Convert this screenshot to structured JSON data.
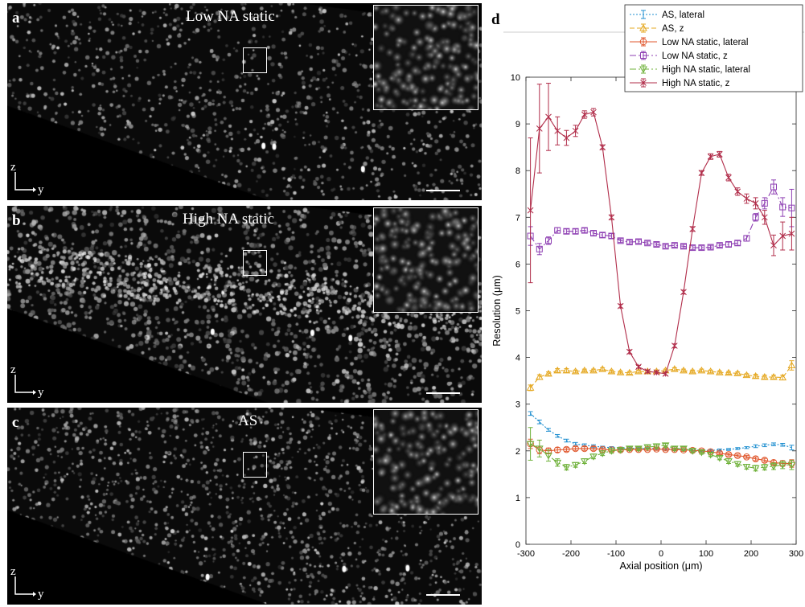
{
  "panels": [
    {
      "letter": "a",
      "title": "Low NA static",
      "axis_z": "z",
      "axis_y": "y",
      "density": 1300,
      "blur": 0.25,
      "band": false
    },
    {
      "letter": "b",
      "title": "High NA static",
      "axis_z": "z",
      "axis_y": "y",
      "density": 1800,
      "blur": 0.55,
      "band": true
    },
    {
      "letter": "c",
      "title": "AS",
      "axis_z": "z",
      "axis_y": "y",
      "density": 1700,
      "blur": 0.2,
      "band": false
    }
  ],
  "chart_data": {
    "type": "line",
    "panel_letter": "d",
    "xlabel": "Axial position (μm)",
    "ylabel": "Resolution (μm)",
    "xlim": [
      -300,
      300
    ],
    "ylim": [
      0,
      10
    ],
    "xticks": [
      -300,
      -200,
      -100,
      0,
      100,
      200,
      300
    ],
    "yticks": [
      0,
      1,
      2,
      3,
      4,
      5,
      6,
      7,
      8,
      9,
      10
    ],
    "legend_position": "top-right",
    "x": [
      -290,
      -270,
      -250,
      -230,
      -210,
      -190,
      -170,
      -150,
      -130,
      -110,
      -90,
      -70,
      -50,
      -30,
      -10,
      10,
      30,
      50,
      70,
      90,
      110,
      130,
      150,
      170,
      190,
      210,
      230,
      250,
      270,
      290
    ],
    "series": [
      {
        "name": "AS, lateral",
        "color": "#1f8fd0",
        "marker": "I",
        "dash": "2,2",
        "values": [
          2.8,
          2.62,
          2.45,
          2.32,
          2.22,
          2.15,
          2.12,
          2.1,
          2.08,
          2.07,
          2.06,
          2.06,
          2.05,
          2.05,
          2.05,
          2.04,
          2.04,
          2.03,
          2.02,
          2.01,
          2.01,
          2.02,
          2.03,
          2.05,
          2.07,
          2.1,
          2.12,
          2.14,
          2.13,
          2.07
        ],
        "err": [
          0.04,
          0.04,
          0.03,
          0.03,
          0.03,
          0.03,
          0.03,
          0.03,
          0.02,
          0.02,
          0.02,
          0.02,
          0.02,
          0.02,
          0.02,
          0.02,
          0.02,
          0.02,
          0.02,
          0.02,
          0.02,
          0.02,
          0.02,
          0.02,
          0.02,
          0.03,
          0.03,
          0.03,
          0.03,
          0.05
        ]
      },
      {
        "name": "AS, z",
        "color": "#e5a821",
        "marker": "triangle-up",
        "dash": "6,3",
        "values": [
          3.35,
          3.58,
          3.65,
          3.72,
          3.72,
          3.7,
          3.72,
          3.72,
          3.75,
          3.7,
          3.68,
          3.67,
          3.7,
          3.7,
          3.7,
          3.72,
          3.75,
          3.72,
          3.7,
          3.72,
          3.7,
          3.68,
          3.67,
          3.66,
          3.62,
          3.6,
          3.58,
          3.58,
          3.57,
          3.83
        ],
        "err": [
          0.06,
          0.05,
          0.04,
          0.04,
          0.04,
          0.03,
          0.03,
          0.03,
          0.03,
          0.03,
          0.03,
          0.03,
          0.03,
          0.03,
          0.03,
          0.03,
          0.03,
          0.03,
          0.03,
          0.03,
          0.03,
          0.03,
          0.03,
          0.03,
          0.03,
          0.04,
          0.04,
          0.04,
          0.05,
          0.1
        ]
      },
      {
        "name": "Low NA static, lateral",
        "color": "#e0572d",
        "marker": "circle",
        "dash": "",
        "values": [
          2.15,
          2.02,
          2.0,
          2.02,
          2.03,
          2.05,
          2.05,
          2.05,
          2.03,
          2.02,
          2.02,
          2.03,
          2.03,
          2.03,
          2.04,
          2.03,
          2.03,
          2.02,
          2.01,
          2.0,
          1.98,
          1.95,
          1.92,
          1.9,
          1.87,
          1.83,
          1.8,
          1.75,
          1.73,
          1.73
        ],
        "err": [
          0.1,
          0.08,
          0.06,
          0.05,
          0.04,
          0.04,
          0.04,
          0.04,
          0.03,
          0.03,
          0.03,
          0.03,
          0.03,
          0.03,
          0.03,
          0.03,
          0.03,
          0.03,
          0.03,
          0.03,
          0.03,
          0.03,
          0.03,
          0.03,
          0.03,
          0.04,
          0.04,
          0.05,
          0.06,
          0.08
        ]
      },
      {
        "name": "Low NA static, z",
        "color": "#8e3fb3",
        "marker": "square",
        "dash": "8,3,2,3",
        "values": [
          6.6,
          6.32,
          6.5,
          6.72,
          6.7,
          6.7,
          6.72,
          6.66,
          6.62,
          6.6,
          6.5,
          6.47,
          6.48,
          6.45,
          6.42,
          6.38,
          6.4,
          6.38,
          6.35,
          6.35,
          6.36,
          6.4,
          6.42,
          6.45,
          6.55,
          7.0,
          7.3,
          7.65,
          7.22,
          7.2
        ],
        "err": [
          0.2,
          0.12,
          0.08,
          0.06,
          0.05,
          0.05,
          0.05,
          0.05,
          0.05,
          0.05,
          0.04,
          0.04,
          0.04,
          0.04,
          0.04,
          0.04,
          0.04,
          0.04,
          0.04,
          0.04,
          0.04,
          0.04,
          0.05,
          0.05,
          0.06,
          0.08,
          0.12,
          0.15,
          0.2,
          0.4
        ]
      },
      {
        "name": "High NA static, lateral",
        "color": "#6fb13a",
        "marker": "triangle-down",
        "dash": "8,3,2,3",
        "values": [
          2.15,
          2.05,
          1.9,
          1.75,
          1.65,
          1.7,
          1.78,
          1.88,
          1.95,
          2.0,
          2.02,
          2.05,
          2.05,
          2.08,
          2.1,
          2.12,
          2.05,
          2.05,
          2.0,
          1.97,
          1.92,
          1.85,
          1.78,
          1.72,
          1.66,
          1.63,
          1.65,
          1.67,
          1.7,
          1.7
        ],
        "err": [
          0.35,
          0.18,
          0.12,
          0.08,
          0.06,
          0.05,
          0.05,
          0.05,
          0.05,
          0.05,
          0.04,
          0.04,
          0.04,
          0.04,
          0.04,
          0.04,
          0.04,
          0.04,
          0.04,
          0.04,
          0.04,
          0.04,
          0.05,
          0.05,
          0.05,
          0.06,
          0.06,
          0.07,
          0.08,
          0.1
        ]
      },
      {
        "name": "High NA static, z",
        "color": "#b12d4a",
        "marker": "star",
        "dash": "",
        "values": [
          7.15,
          8.9,
          9.15,
          8.85,
          8.7,
          8.85,
          9.2,
          9.25,
          8.5,
          7.0,
          5.1,
          4.12,
          3.8,
          3.7,
          3.68,
          3.65,
          4.25,
          5.4,
          6.75,
          7.95,
          8.3,
          8.35,
          7.85,
          7.55,
          7.4,
          7.3,
          7.0,
          6.4,
          6.6,
          6.65
        ],
        "err": [
          1.55,
          0.95,
          0.72,
          0.3,
          0.16,
          0.12,
          0.08,
          0.08,
          0.05,
          0.05,
          0.04,
          0.04,
          0.03,
          0.03,
          0.03,
          0.03,
          0.04,
          0.04,
          0.05,
          0.05,
          0.06,
          0.06,
          0.07,
          0.08,
          0.1,
          0.12,
          0.15,
          0.22,
          0.3,
          0.35
        ]
      }
    ]
  }
}
